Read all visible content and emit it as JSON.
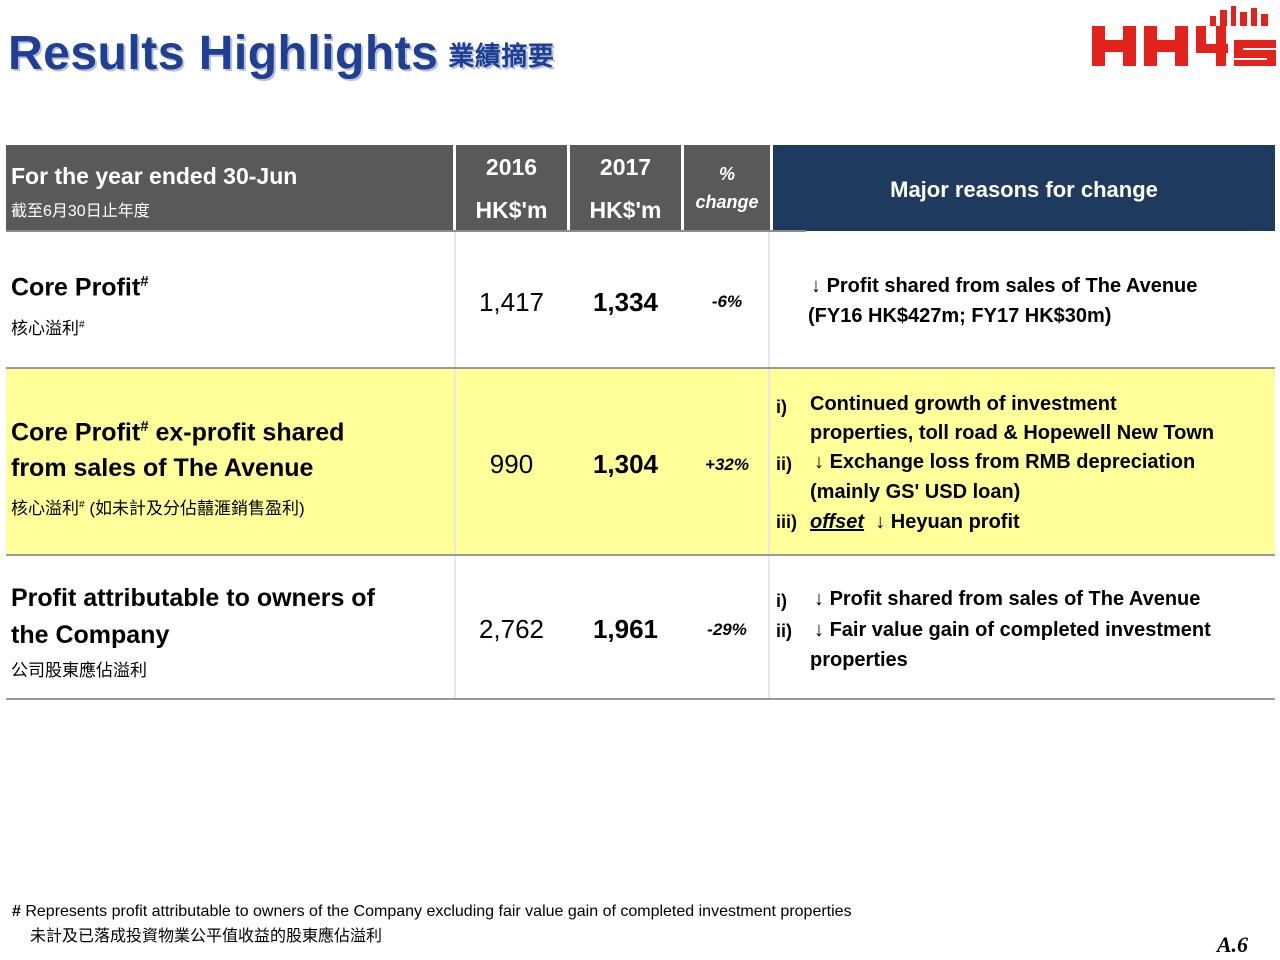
{
  "title": "Results Highlights",
  "title_zh": "業績摘要",
  "header": {
    "period_label": "For the year ended 30-Jun",
    "period_label_zh": "截至6月30日止年度",
    "col_2016_year": "2016",
    "col_2016_unit": "HK$'m",
    "col_2017_year": "2017",
    "col_2017_unit": "HK$'m",
    "col_change_symbol": "%",
    "col_change_label": "change",
    "reasons_label": "Major reasons for change"
  },
  "rows": [
    {
      "label": "Core Profit",
      "label_sup": "#",
      "label_zh": "核心溢利",
      "label_zh_sup": "#",
      "v2016": "1,417",
      "v2017": "1,334",
      "change": "-6%",
      "reasons": [
        {
          "marker": "",
          "arrow": "↓",
          "text": "Profit shared from sales of The Avenue"
        },
        {
          "marker": "",
          "arrow": "",
          "text": "(FY16 HK$427m; FY17 HK$30m)"
        }
      ]
    },
    {
      "label_line1_a": "Core Profit",
      "label_sup": "#",
      "label_line1_b": " ex-profit shared",
      "label_line2": "from sales of The Avenue",
      "label_zh": "核心溢利",
      "label_zh_sup": "#",
      "label_zh_b": " (如未計及分佔囍滙銷售盈利)",
      "v2016": "990",
      "v2017": "1,304",
      "change": "+32%",
      "reasons": [
        {
          "marker": "i)",
          "arrow": "",
          "text": "Continued growth of investment"
        },
        {
          "marker": "",
          "arrow": "",
          "text": "properties, toll road & Hopewell New Town"
        },
        {
          "marker": "ii)",
          "arrow": "↓",
          "text": "Exchange loss from RMB depreciation"
        },
        {
          "marker": "",
          "arrow": "",
          "text": "(mainly GS' USD loan)"
        },
        {
          "marker": "iii)",
          "offset": "offset",
          "arrow": "↓",
          "text": "Heyuan profit"
        }
      ]
    },
    {
      "label_line1": "Profit attributable to owners of",
      "label_line2": "the Company",
      "label_zh": "公司股東應佔溢利",
      "v2016": "2,762",
      "v2017": "1,961",
      "change": "-29%",
      "reasons": [
        {
          "marker": "i)",
          "arrow": "↓",
          "text": "Profit shared from sales of The Avenue"
        },
        {
          "marker": "ii)",
          "arrow": "↓",
          "text": "Fair value gain of completed investment"
        },
        {
          "marker": "",
          "arrow": "",
          "text": "properties"
        }
      ]
    }
  ],
  "footnote": {
    "symbol": "#",
    "text": " Represents profit attributable to owners of the Company excluding fair value gain of completed investment properties",
    "text_zh": "未計及已落成投資物業公平值收益的股東應佔溢利"
  },
  "page_number": "A.6",
  "logo": {
    "text": "HH45",
    "color": "#e3231b"
  },
  "colors": {
    "title": "#1f3f94",
    "header_gray": "#595959",
    "header_navy": "#1f3a5f",
    "highlight": "#ffff99",
    "logo_red": "#e3231b"
  }
}
